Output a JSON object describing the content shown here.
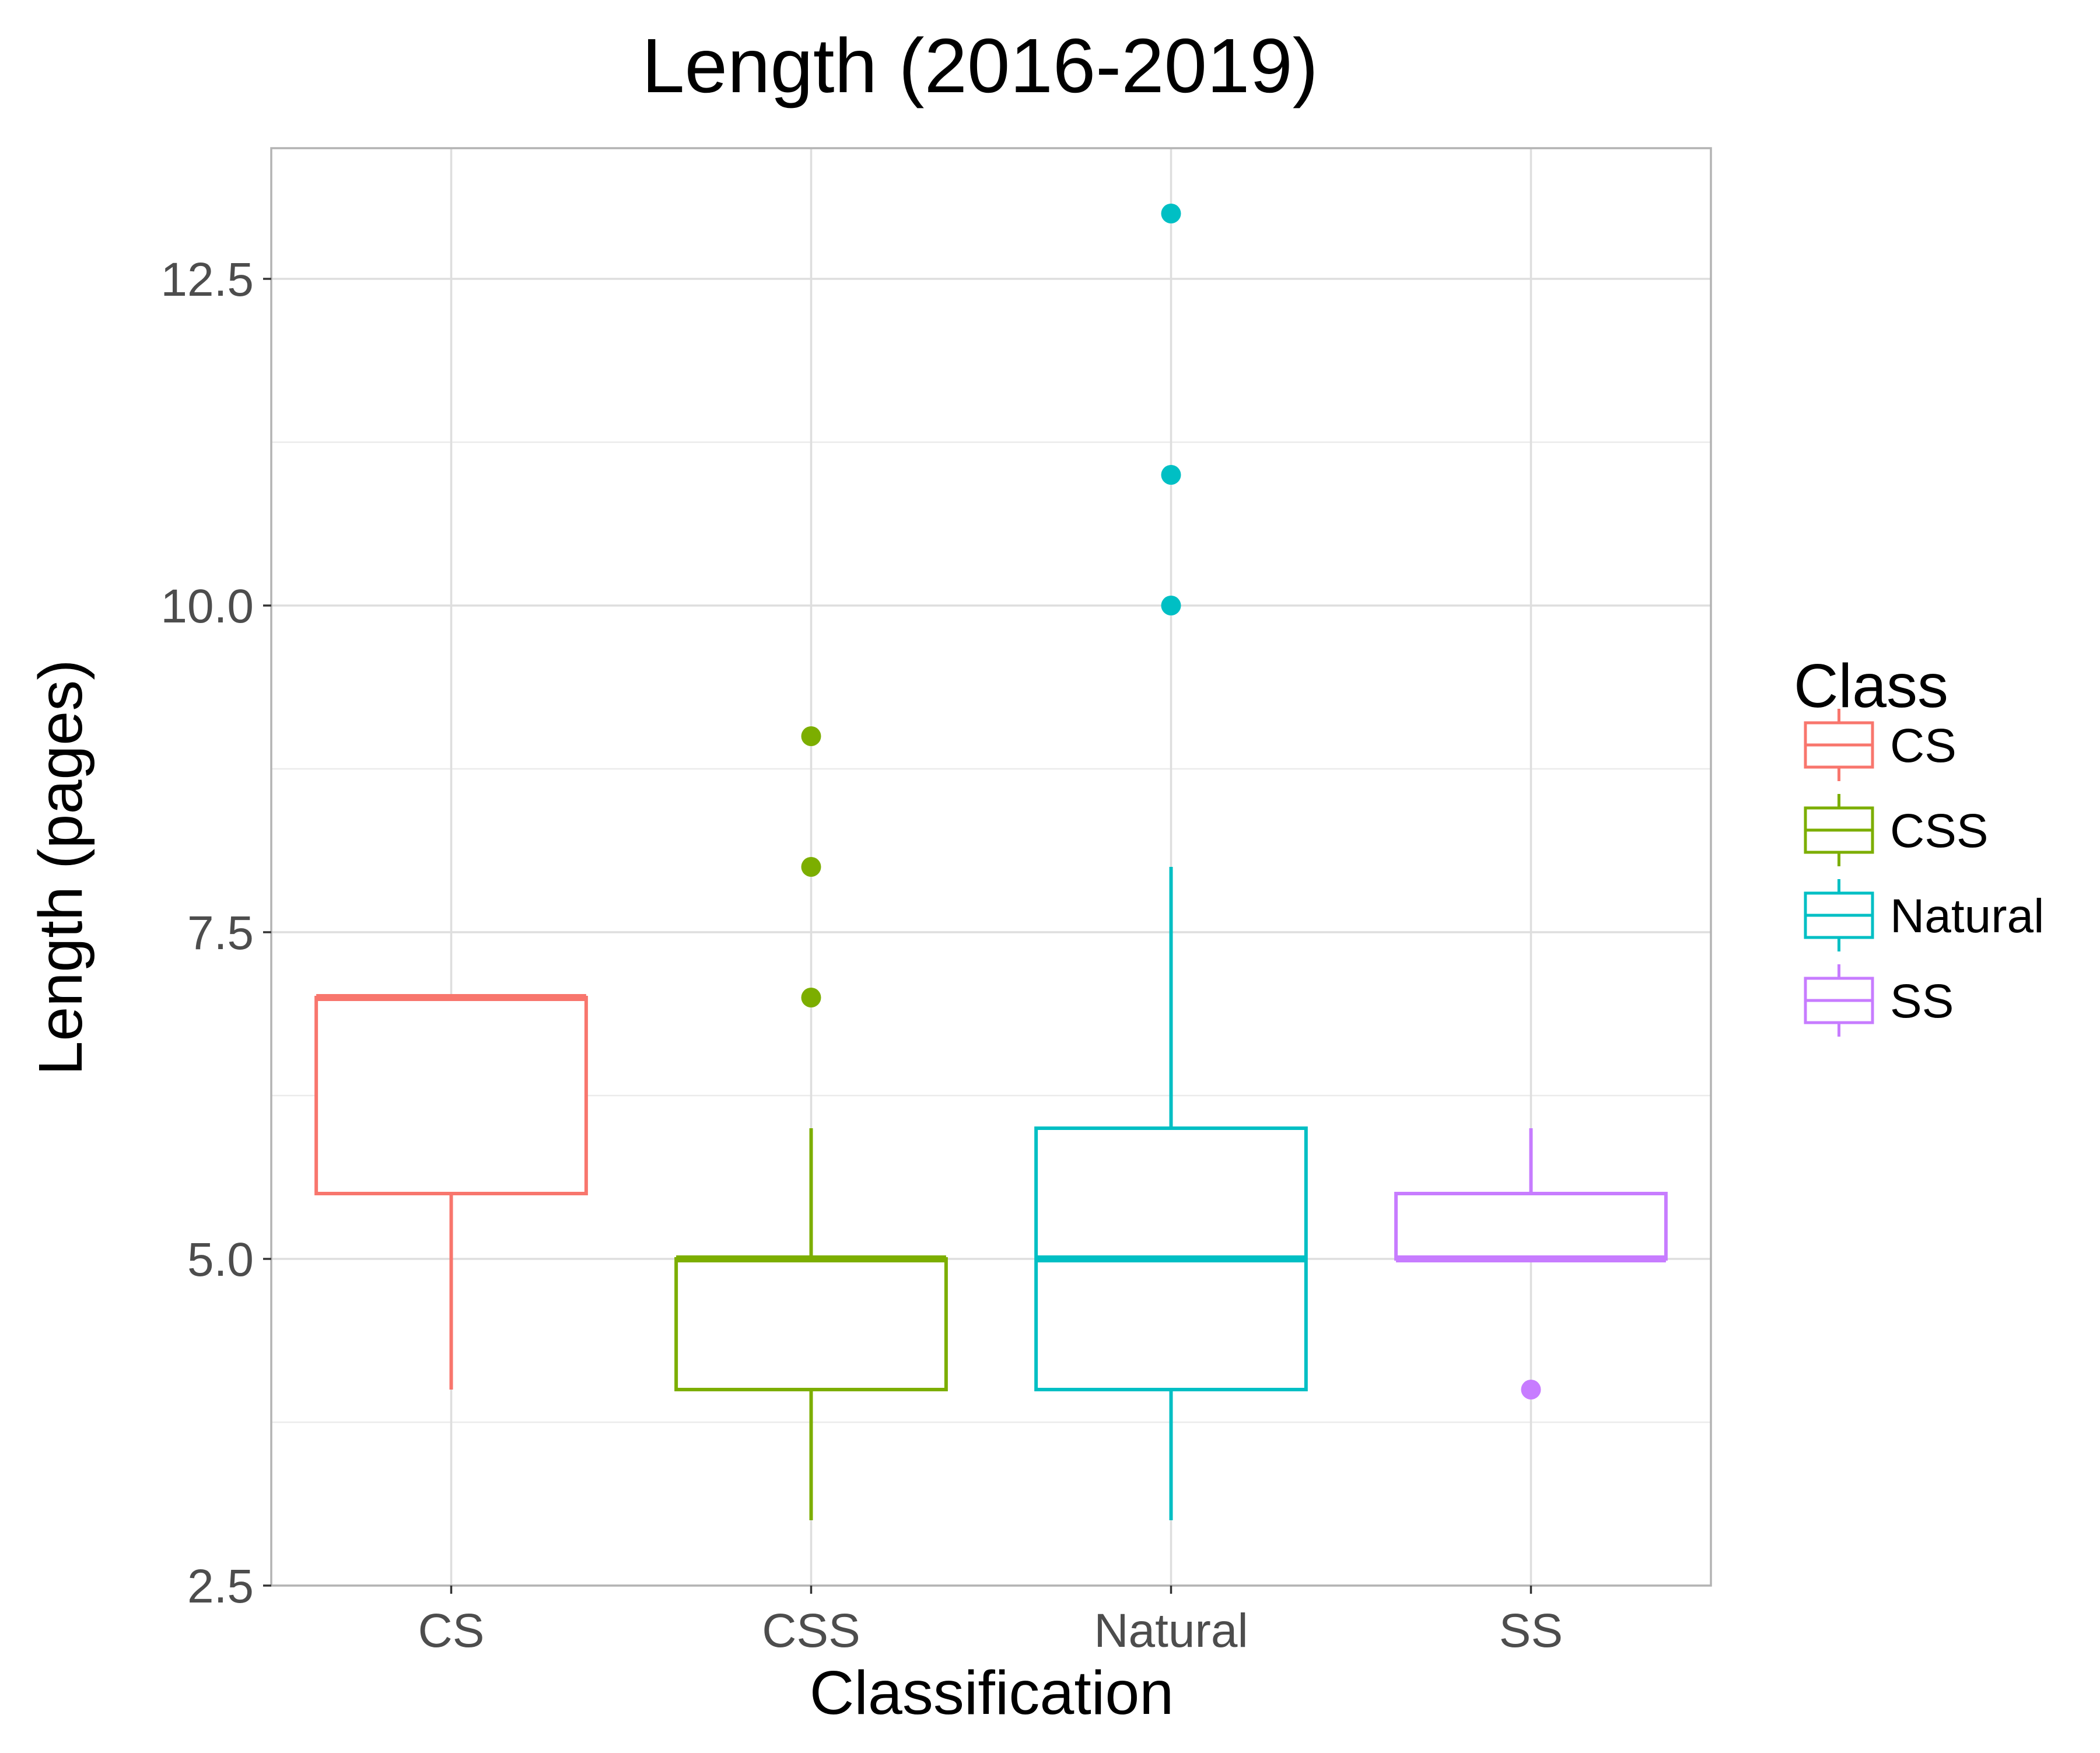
{
  "chart_data": {
    "type": "boxplot",
    "title": "Length (2016-2019)",
    "xlabel": "Classification",
    "ylabel": "Length (pages)",
    "ylim": [
      2.5,
      13.5
    ],
    "yticks": [
      "2.5",
      "5.0",
      "7.5",
      "10.0",
      "12.5"
    ],
    "grid": true,
    "legend": {
      "title": "Class",
      "position": "right"
    },
    "categories": [
      "CS",
      "CSS",
      "Natural",
      "SS"
    ],
    "series": [
      {
        "name": "CS",
        "color": "#F8766D",
        "whisker_low": 4.0,
        "q1": 5.5,
        "median": 7.0,
        "q3": 7.0,
        "whisker_high": 7.0,
        "outliers": []
      },
      {
        "name": "CSS",
        "color": "#7CAE00",
        "whisker_low": 3.0,
        "q1": 4.0,
        "median": 5.0,
        "q3": 5.0,
        "whisker_high": 6.0,
        "outliers": [
          7.0,
          8.0,
          9.0
        ]
      },
      {
        "name": "Natural",
        "color": "#00BFC4",
        "whisker_low": 3.0,
        "q1": 4.0,
        "median": 5.0,
        "q3": 6.0,
        "whisker_high": 8.0,
        "outliers": [
          10.0,
          11.0,
          13.0
        ]
      },
      {
        "name": "SS",
        "color": "#C77CFF",
        "whisker_low": 5.0,
        "q1": 5.0,
        "median": 5.0,
        "q3": 5.5,
        "whisker_high": 6.0,
        "outliers": [
          4.0
        ]
      }
    ]
  }
}
